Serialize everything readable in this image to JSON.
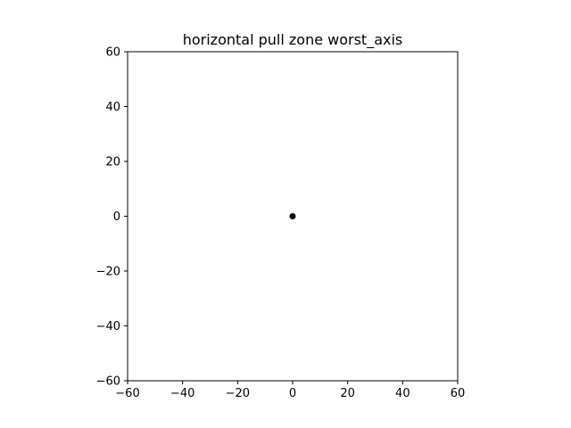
{
  "chart_data": {
    "type": "scatter",
    "title": "horizontal pull zone worst_axis",
    "xlabel": "",
    "ylabel": "",
    "xlim": [
      -60,
      60
    ],
    "ylim": [
      -60,
      60
    ],
    "x_ticks": [
      -60,
      -40,
      -20,
      0,
      20,
      40,
      60
    ],
    "y_ticks": [
      -60,
      -40,
      -20,
      0,
      20,
      40,
      60
    ],
    "x_tick_labels": [
      "−60",
      "−40",
      "−20",
      "0",
      "20",
      "40",
      "60"
    ],
    "y_tick_labels": [
      "−60",
      "−40",
      "−20",
      "0",
      "20",
      "40",
      "60"
    ],
    "grid": false,
    "legend": "none",
    "series": [
      {
        "color": "#000000",
        "points": [
          {
            "x": 0,
            "y": 0
          }
        ]
      }
    ]
  }
}
